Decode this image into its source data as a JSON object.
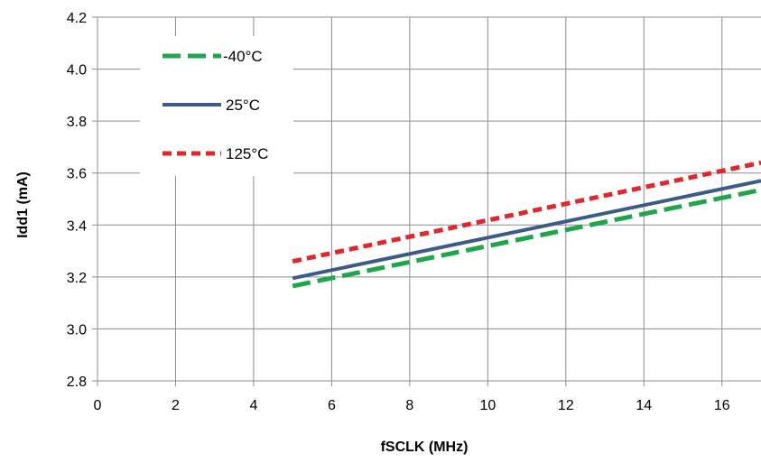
{
  "chart_data": {
    "type": "line",
    "xlabel": "fSCLK (MHz)",
    "ylabel": "Idd1 (mA)",
    "xlim": [
      0,
      17
    ],
    "ylim": [
      2.8,
      4.2
    ],
    "x_ticks": [
      "0",
      "2",
      "4",
      "6",
      "8",
      "10",
      "12",
      "14",
      "16"
    ],
    "y_ticks": [
      "2.8",
      "3.0",
      "3.2",
      "3.4",
      "3.6",
      "3.8",
      "4.0",
      "4.2"
    ],
    "x_tick_values": [
      0,
      2,
      4,
      6,
      8,
      10,
      12,
      14,
      16
    ],
    "y_tick_values": [
      2.8,
      3.0,
      3.2,
      3.4,
      3.6,
      3.8,
      4.0,
      4.2
    ],
    "grid": true,
    "legend_position": "top-left",
    "series": [
      {
        "name": "-40°C",
        "color": "#1fa64a",
        "dash": "dashed-long",
        "x": [
          5,
          17
        ],
        "y": [
          3.165,
          3.535
        ]
      },
      {
        "name": "25°C",
        "color": "#3d5a8c",
        "dash": "solid",
        "x": [
          5,
          17
        ],
        "y": [
          3.195,
          3.57
        ]
      },
      {
        "name": "125°C",
        "color": "#e3262a",
        "dash": "dashed-short",
        "x": [
          5,
          17
        ],
        "y": [
          3.26,
          3.64
        ]
      }
    ]
  }
}
